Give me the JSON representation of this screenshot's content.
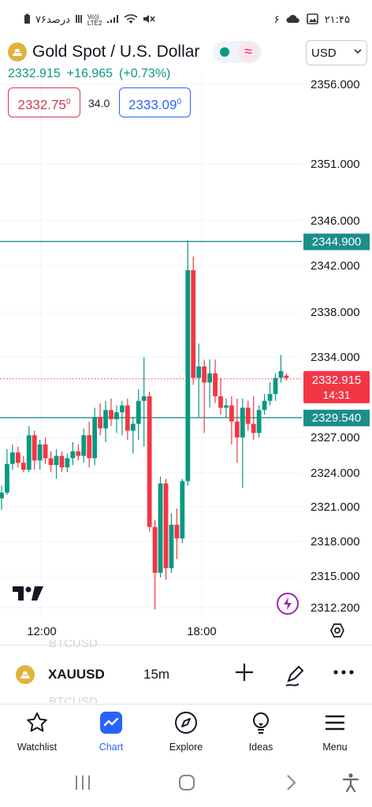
{
  "status_bar": {
    "time": "۲۱:۴۵",
    "notification_count": "۶",
    "battery_text": "۷۶درصد",
    "network": "Vo)) LTE2"
  },
  "header": {
    "title": "Gold Spot / U.S. Dollar",
    "currency": "USD",
    "last_price": "2332.915",
    "change": "+16.965",
    "change_pct": "(+0.73%)"
  },
  "quote": {
    "bid_main": "2332.75",
    "bid_sup": "0",
    "spread": "34.0",
    "ask_main": "2333.09",
    "ask_sup": "0"
  },
  "chart_data": {
    "type": "candlestick",
    "symbol": "XAUUSD",
    "interval": "15m",
    "x_ticks": [
      "12:00",
      "18:00"
    ],
    "y_ticks": [
      "2356.000",
      "2351.000",
      "2346.000",
      "2342.000",
      "2338.000",
      "2334.000",
      "2327.000",
      "2324.000",
      "2321.000",
      "2318.000",
      "2315.000",
      "2312.200"
    ],
    "horizontal_lines": [
      {
        "label": "2344.900",
        "value": 2344.9,
        "color": "#1b8e8b"
      },
      {
        "label": "2329.540",
        "value": 2329.54,
        "color": "#1b8e8b"
      }
    ],
    "current_price_label": "2332.915",
    "countdown_label": "14:31",
    "up_color": "#089981",
    "down_color": "#f23645",
    "candles": [
      {
        "o": 2322.5,
        "h": 2323.6,
        "l": 2321.5,
        "c": 2323.0
      },
      {
        "o": 2323.0,
        "h": 2326.8,
        "l": 2322.8,
        "c": 2325.5
      },
      {
        "o": 2325.5,
        "h": 2327.2,
        "l": 2325.0,
        "c": 2326.5
      },
      {
        "o": 2326.5,
        "h": 2327.0,
        "l": 2325.2,
        "c": 2325.6
      },
      {
        "o": 2325.6,
        "h": 2326.2,
        "l": 2324.8,
        "c": 2325.0
      },
      {
        "o": 2325.0,
        "h": 2328.8,
        "l": 2324.8,
        "c": 2328.0
      },
      {
        "o": 2328.0,
        "h": 2328.4,
        "l": 2325.0,
        "c": 2325.8
      },
      {
        "o": 2325.8,
        "h": 2327.6,
        "l": 2325.0,
        "c": 2327.2
      },
      {
        "o": 2327.2,
        "h": 2327.8,
        "l": 2325.5,
        "c": 2326.0
      },
      {
        "o": 2326.0,
        "h": 2326.6,
        "l": 2324.8,
        "c": 2325.4
      },
      {
        "o": 2325.4,
        "h": 2326.8,
        "l": 2324.2,
        "c": 2326.2
      },
      {
        "o": 2326.2,
        "h": 2326.6,
        "l": 2324.8,
        "c": 2325.2
      },
      {
        "o": 2325.2,
        "h": 2326.4,
        "l": 2324.8,
        "c": 2326.0
      },
      {
        "o": 2326.0,
        "h": 2327.4,
        "l": 2325.4,
        "c": 2326.6
      },
      {
        "o": 2326.6,
        "h": 2327.2,
        "l": 2325.8,
        "c": 2326.2
      },
      {
        "o": 2326.2,
        "h": 2328.6,
        "l": 2325.6,
        "c": 2328.0
      },
      {
        "o": 2328.0,
        "h": 2329.2,
        "l": 2325.2,
        "c": 2326.0
      },
      {
        "o": 2326.0,
        "h": 2330.4,
        "l": 2325.4,
        "c": 2329.6
      },
      {
        "o": 2329.6,
        "h": 2330.8,
        "l": 2328.0,
        "c": 2328.6
      },
      {
        "o": 2328.6,
        "h": 2331.0,
        "l": 2327.4,
        "c": 2330.2
      },
      {
        "o": 2330.2,
        "h": 2331.2,
        "l": 2328.8,
        "c": 2329.4
      },
      {
        "o": 2329.4,
        "h": 2330.6,
        "l": 2328.2,
        "c": 2330.0
      },
      {
        "o": 2330.0,
        "h": 2331.0,
        "l": 2328.0,
        "c": 2330.6
      },
      {
        "o": 2330.6,
        "h": 2331.2,
        "l": 2327.6,
        "c": 2328.4
      },
      {
        "o": 2328.4,
        "h": 2329.6,
        "l": 2326.4,
        "c": 2329.0
      },
      {
        "o": 2329.0,
        "h": 2332.0,
        "l": 2327.6,
        "c": 2331.0
      },
      {
        "o": 2331.0,
        "h": 2334.8,
        "l": 2327.0,
        "c": 2331.4
      },
      {
        "o": 2331.4,
        "h": 2331.8,
        "l": 2319.6,
        "c": 2320.0
      },
      {
        "o": 2320.0,
        "h": 2320.6,
        "l": 2312.8,
        "c": 2316.0
      },
      {
        "o": 2316.0,
        "h": 2324.4,
        "l": 2315.6,
        "c": 2323.8
      },
      {
        "o": 2323.8,
        "h": 2324.2,
        "l": 2315.4,
        "c": 2316.4
      },
      {
        "o": 2316.4,
        "h": 2321.2,
        "l": 2316.0,
        "c": 2320.2
      },
      {
        "o": 2320.2,
        "h": 2321.6,
        "l": 2317.2,
        "c": 2319.0
      },
      {
        "o": 2319.0,
        "h": 2324.2,
        "l": 2318.6,
        "c": 2324.0
      },
      {
        "o": 2324.0,
        "h": 2345.0,
        "l": 2323.6,
        "c": 2342.4
      },
      {
        "o": 2342.4,
        "h": 2343.6,
        "l": 2332.4,
        "c": 2333.0
      },
      {
        "o": 2333.0,
        "h": 2336.0,
        "l": 2329.6,
        "c": 2334.0
      },
      {
        "o": 2334.0,
        "h": 2334.6,
        "l": 2328.2,
        "c": 2332.6
      },
      {
        "o": 2332.6,
        "h": 2334.6,
        "l": 2330.4,
        "c": 2333.4
      },
      {
        "o": 2333.4,
        "h": 2334.6,
        "l": 2330.8,
        "c": 2331.4
      },
      {
        "o": 2331.4,
        "h": 2333.0,
        "l": 2329.8,
        "c": 2330.4
      },
      {
        "o": 2330.4,
        "h": 2331.2,
        "l": 2329.6,
        "c": 2330.6
      },
      {
        "o": 2330.6,
        "h": 2331.4,
        "l": 2327.2,
        "c": 2329.2
      },
      {
        "o": 2329.2,
        "h": 2331.2,
        "l": 2325.6,
        "c": 2327.8
      },
      {
        "o": 2327.8,
        "h": 2331.2,
        "l": 2323.4,
        "c": 2330.4
      },
      {
        "o": 2330.4,
        "h": 2331.0,
        "l": 2328.4,
        "c": 2329.0
      },
      {
        "o": 2329.0,
        "h": 2331.4,
        "l": 2327.6,
        "c": 2328.2
      },
      {
        "o": 2328.2,
        "h": 2330.6,
        "l": 2327.8,
        "c": 2330.2
      },
      {
        "o": 2330.2,
        "h": 2331.6,
        "l": 2329.8,
        "c": 2331.0
      },
      {
        "o": 2331.0,
        "h": 2332.6,
        "l": 2330.6,
        "c": 2331.6
      },
      {
        "o": 2331.6,
        "h": 2333.4,
        "l": 2331.0,
        "c": 2333.0
      },
      {
        "o": 2333.0,
        "h": 2335.0,
        "l": 2332.6,
        "c": 2333.6
      },
      {
        "o": 2333.2,
        "h": 2333.4,
        "l": 2332.8,
        "c": 2333.0
      }
    ]
  },
  "instrument_bar": {
    "ghost_above": "BTCUSD",
    "symbol": "XAUUSD",
    "interval": "15m",
    "ghost_below": "BTCUSD"
  },
  "nav": {
    "items": [
      {
        "label": "Watchlist"
      },
      {
        "label": "Chart"
      },
      {
        "label": "Explore"
      },
      {
        "label": "Ideas"
      },
      {
        "label": "Menu"
      }
    ],
    "active_color": "#2962ff"
  }
}
